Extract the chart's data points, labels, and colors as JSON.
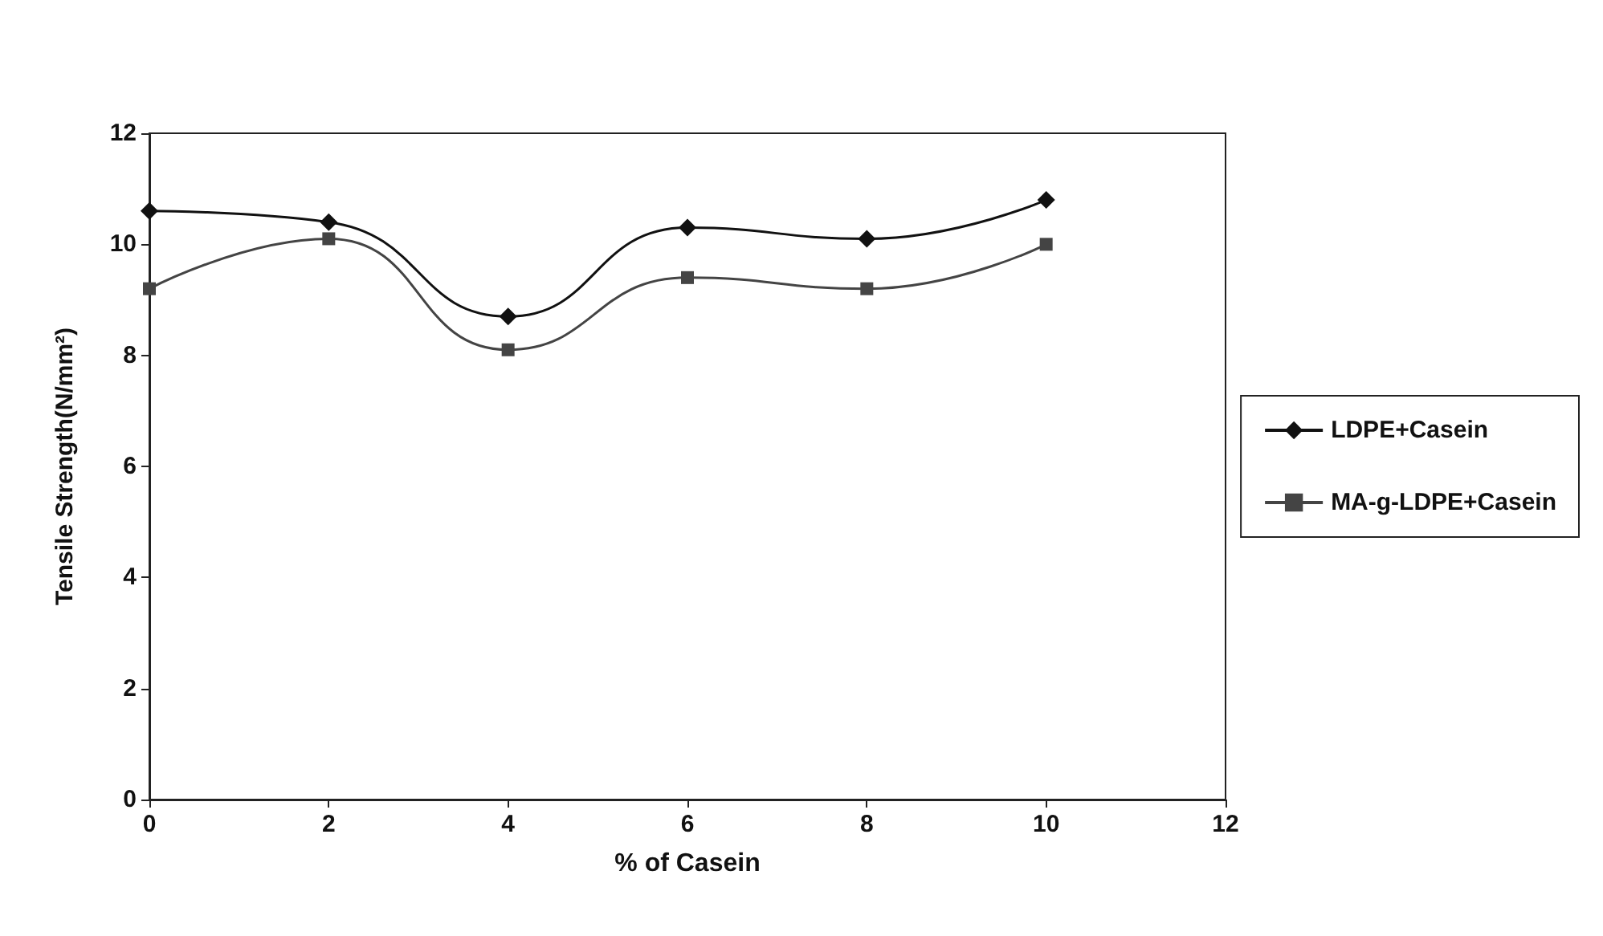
{
  "chart_data": {
    "type": "line",
    "xlabel": "% of Casein",
    "ylabel": "Tensile Strength(N/mm²)",
    "x": [
      0,
      2,
      4,
      6,
      8,
      10
    ],
    "xlim": [
      0,
      12
    ],
    "xticks": [
      0,
      2,
      4,
      6,
      8,
      10,
      12
    ],
    "ylim": [
      0,
      12
    ],
    "yticks": [
      0,
      2,
      4,
      6,
      8,
      10,
      12
    ],
    "grid": false,
    "legend": "right",
    "series": [
      {
        "name": "LDPE+Casein",
        "color": "#111111",
        "marker": "diamond",
        "values": [
          10.6,
          10.4,
          8.7,
          10.3,
          10.1,
          10.8
        ]
      },
      {
        "name": "MA-g-LDPE+Casein",
        "color": "#444444",
        "marker": "square",
        "values": [
          9.2,
          10.1,
          8.1,
          9.4,
          9.2,
          10.0
        ]
      }
    ]
  }
}
